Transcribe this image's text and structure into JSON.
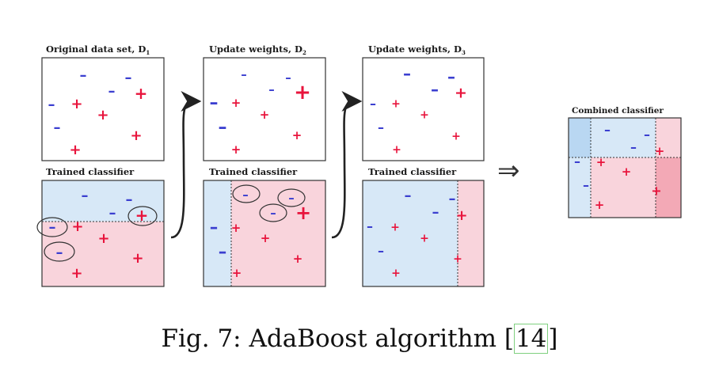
{
  "panels": {
    "original": {
      "title": "Original data set,  D",
      "subscript": "1"
    },
    "update2": {
      "title": "Update weights,  D",
      "subscript": "2"
    },
    "update3": {
      "title": "Update weights,  D",
      "subscript": "3"
    },
    "trained1": {
      "title": "Trained classifier"
    },
    "trained2": {
      "title": "Trained classifier"
    },
    "trained3": {
      "title": "Trained classifier"
    },
    "combined": {
      "title": "Combined classifier"
    }
  },
  "symbols": {
    "plus": "+",
    "minus": "–"
  },
  "implies_arrow": "⇒",
  "caption": {
    "text": "Fig. 7: AdaBoost algorithm [",
    "ref": "14",
    "close": "]"
  },
  "colors": {
    "region_blue": "#d7e8f7",
    "region_pink": "#f9d4dc",
    "region_pink_dark": "#f3a9b6",
    "region_blue_dark": "#b9d7f2",
    "plus": "#e8143c",
    "minus": "#3b3fd0"
  }
}
